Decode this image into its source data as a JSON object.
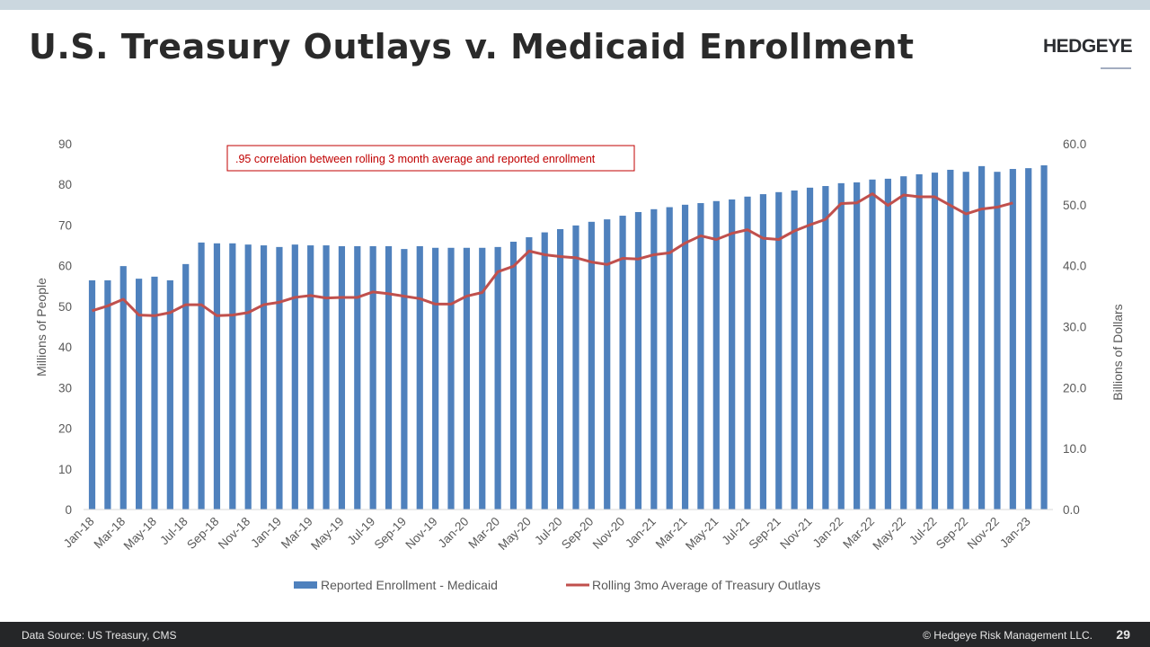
{
  "header": {
    "title": "U.S. Treasury Outlays v. Medicaid Enrollment",
    "logo": "HEDGEYE"
  },
  "footer": {
    "source": "Data Source: US Treasury, CMS",
    "copyright": "© Hedgeye Risk Management LLC.",
    "page_number": "29"
  },
  "colors": {
    "bars": "#4f81bd",
    "line": "#c0504d",
    "annotation": "#c00000",
    "axis_text": "#595959"
  },
  "chart_data": {
    "type": "bar+line",
    "annotation": ".95 correlation between rolling 3 month average and reported enrollment",
    "ylabel_left": "Millions of People",
    "ylabel_right": "Billions of Dollars",
    "ylim_left": [
      0,
      90
    ],
    "ylim_right": [
      0,
      60
    ],
    "yticks_left": [
      "0",
      "10",
      "20",
      "30",
      "40",
      "50",
      "60",
      "70",
      "80",
      "90"
    ],
    "yticks_right": [
      "0.0",
      "10.0",
      "20.0",
      "30.0",
      "40.0",
      "50.0",
      "60.0"
    ],
    "x_tick_labels": [
      "Jan-18",
      "Mar-18",
      "May-18",
      "Jul-18",
      "Sep-18",
      "Nov-18",
      "Jan-19",
      "Mar-19",
      "May-19",
      "Jul-19",
      "Sep-19",
      "Nov-19",
      "Jan-20",
      "Mar-20",
      "May-20",
      "Jul-20",
      "Sep-20",
      "Nov-20",
      "Jan-21",
      "Mar-21",
      "May-21",
      "Jul-21",
      "Sep-21",
      "Nov-21",
      "Jan-22",
      "Mar-22",
      "May-22",
      "Jul-22",
      "Sep-22",
      "Nov-22",
      "Jan-23"
    ],
    "x_start": "Jan-18",
    "grid": false,
    "legend_position": "bottom",
    "series": [
      {
        "name": "Reported Enrollment - Medicaid",
        "type": "bar",
        "axis": "left",
        "values": [
          56.4,
          56.4,
          59.9,
          56.8,
          57.3,
          56.4,
          60.4,
          65.7,
          65.5,
          65.5,
          65.2,
          65.0,
          64.6,
          65.2,
          65.0,
          65.0,
          64.8,
          64.8,
          64.8,
          64.8,
          64.1,
          64.8,
          64.4,
          64.4,
          64.4,
          64.4,
          64.6,
          65.9,
          67.0,
          68.2,
          69.0,
          69.9,
          70.8,
          71.4,
          72.3,
          73.2,
          73.9,
          74.4,
          75.0,
          75.4,
          75.9,
          76.3,
          77.0,
          77.6,
          78.1,
          78.5,
          79.2,
          79.6,
          80.3,
          80.5,
          81.2,
          81.4,
          82.0,
          82.5,
          82.9,
          83.6,
          83.1,
          84.5,
          83.1,
          83.8,
          84.0,
          84.7
        ]
      },
      {
        "name": "Rolling 3mo Average of Treasury Outlays",
        "type": "line",
        "axis": "right",
        "values": [
          32.6,
          33.4,
          34.5,
          31.9,
          31.8,
          32.3,
          33.6,
          33.6,
          31.8,
          31.9,
          32.3,
          33.6,
          34.0,
          34.8,
          35.1,
          34.7,
          34.8,
          34.8,
          35.7,
          35.4,
          35.0,
          34.6,
          33.7,
          33.7,
          35.0,
          35.6,
          39.0,
          39.9,
          42.4,
          41.8,
          41.5,
          41.3,
          40.6,
          40.2,
          41.2,
          41.1,
          41.8,
          42.1,
          43.7,
          44.9,
          44.3,
          45.3,
          45.9,
          44.5,
          44.3,
          45.7,
          46.7,
          47.6,
          50.2,
          50.3,
          51.8,
          49.9,
          51.6,
          51.3,
          51.3,
          49.9,
          48.5,
          49.3,
          49.6,
          50.3
        ]
      }
    ]
  }
}
